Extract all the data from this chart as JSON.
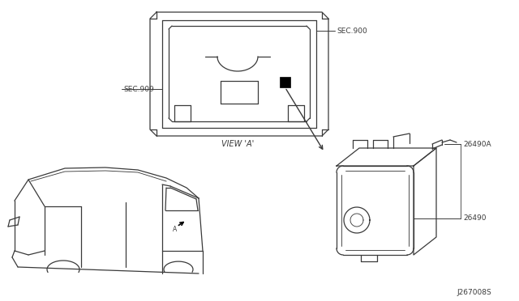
{
  "bg_color": "#ffffff",
  "line_color": "#3a3a3a",
  "text_color": "#3a3a3a",
  "fig_width": 6.4,
  "fig_height": 3.72,
  "diagram_code": "J267008S",
  "labels": {
    "sec900": "SEC.900",
    "sec909": "SEC.909",
    "view_a": "VIEW 'A'",
    "part_26490A": "26490A",
    "part_26490": "26490"
  }
}
